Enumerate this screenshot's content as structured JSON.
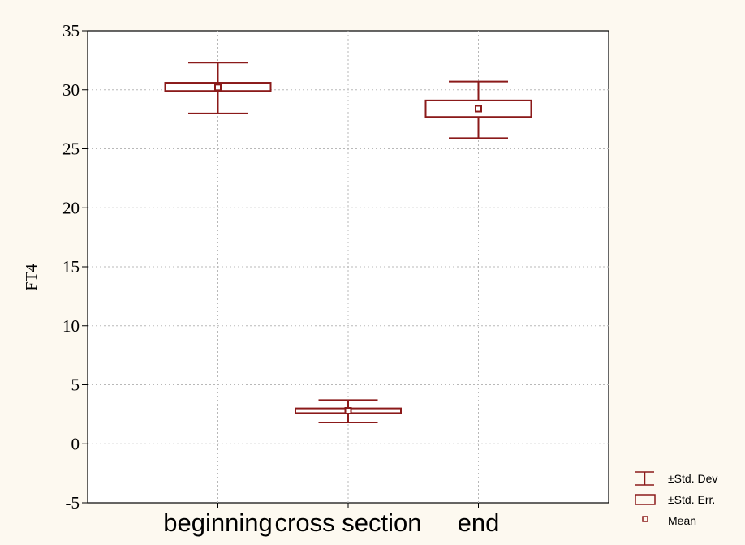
{
  "chart_data": {
    "type": "box",
    "title": "",
    "xlabel": "",
    "ylabel": "FT4",
    "ylim": [
      -5,
      35
    ],
    "yticks": [
      35,
      30,
      25,
      20,
      15,
      10,
      5,
      0,
      -5
    ],
    "grid": true,
    "categories": [
      "beginning",
      "cross section",
      "end"
    ],
    "series": [
      {
        "mean": [
          30.2,
          2.8,
          28.4
        ],
        "std_err_low": [
          29.9,
          2.6,
          27.7
        ],
        "std_err_high": [
          30.6,
          3.0,
          29.1
        ],
        "std_dev_low": [
          28.0,
          1.8,
          25.9
        ],
        "std_dev_high": [
          32.3,
          3.7,
          30.7
        ]
      }
    ],
    "legend": {
      "position": "bottom-right",
      "items": [
        "±Std. Dev",
        "±Std. Err.",
        "Mean"
      ]
    },
    "colors": {
      "series": "#8b1a1a",
      "grid": "#b8b8b8",
      "background": "#fdf9f0",
      "plot_background": "#ffffff"
    }
  }
}
